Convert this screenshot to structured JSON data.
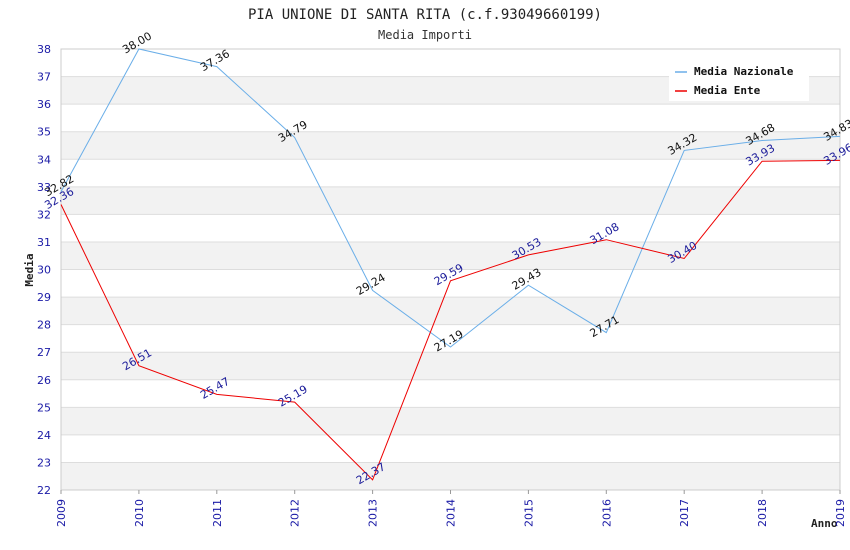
{
  "chart_data": {
    "type": "line",
    "title": "PIA UNIONE DI SANTA RITA (c.f.93049660199)",
    "subtitle": "Media Importi",
    "xlabel": "Anno",
    "ylabel": "Media",
    "ylim": [
      22,
      38
    ],
    "x": [
      "2009",
      "2010",
      "2011",
      "2012",
      "2013",
      "2014",
      "2015",
      "2016",
      "2017",
      "2018",
      "2019"
    ],
    "yticks": [
      "22",
      "23",
      "24",
      "25",
      "26",
      "27",
      "28",
      "29",
      "30",
      "31",
      "32",
      "33",
      "34",
      "35",
      "36",
      "37",
      "38"
    ],
    "legend_position": "top-right",
    "series": [
      {
        "name": "Media Nazionale",
        "color": "#6aaee8",
        "values": [
          32.82,
          38.0,
          37.36,
          34.79,
          29.24,
          27.19,
          29.43,
          27.71,
          34.32,
          34.68,
          34.83
        ],
        "labels": [
          "32.82",
          "38.00",
          "37.36",
          "34.79",
          "29.24",
          "27.19",
          "29.43",
          "27.71",
          "34.32",
          "34.68",
          "34.83"
        ]
      },
      {
        "name": "Media Ente",
        "color": "#ee0000",
        "values": [
          32.36,
          26.51,
          25.47,
          25.19,
          22.37,
          29.59,
          30.53,
          31.08,
          30.4,
          33.93,
          33.96
        ],
        "labels": [
          "32.36",
          "26.51",
          "25.47",
          "25.19",
          "22.37",
          "29.59",
          "30.53",
          "31.08",
          "30.40",
          "33.93",
          "33.96"
        ]
      }
    ]
  }
}
